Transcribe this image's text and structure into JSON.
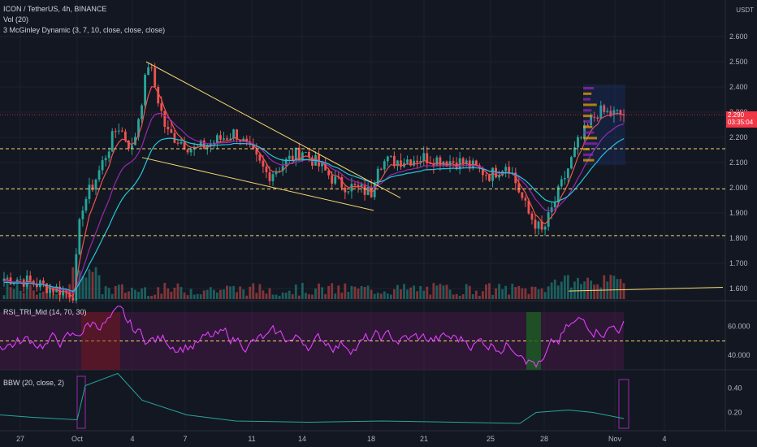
{
  "header": {
    "symbol_line": "ICON / TetherUS, 4h, BINANCE",
    "vol_line": "Vol (20)",
    "mcginley_line": "3 McGinley Dynamic (3, 7, 10, close, close, close)",
    "currency": "USDT"
  },
  "rsi_panel": {
    "label": "RSI_TRI_Mid (14, 70, 30)"
  },
  "bbw_panel": {
    "label": "BBW (20, close, 2)"
  },
  "last_price": {
    "value": "2.290",
    "countdown": "03:35:04",
    "color": "#f23645"
  },
  "colors": {
    "background": "#131722",
    "up": "#26a69a",
    "down": "#ef5350",
    "ma_fast": "#ef5350",
    "ma_mid": "#9c27b0",
    "ma_slow": "#26c6da",
    "trendline": "#f5d76e",
    "rsi_line": "#e040fb",
    "rsi_band": "#4a1848",
    "bbw_line": "#26a69a"
  },
  "chart_data": [
    {
      "type": "candlestick",
      "title": "ICON / TetherUS, 4h, BINANCE",
      "x_ticks": [
        "27",
        "Oct",
        "4",
        "7",
        "11",
        "14",
        "18",
        "21",
        "25",
        "28",
        "Nov",
        "4"
      ],
      "y_ticks": [
        "2.600",
        "2.500",
        "2.400",
        "2.300",
        "2.200",
        "2.100",
        "2.000",
        "1.900",
        "1.800",
        "1.700",
        "1.600"
      ],
      "ylim": [
        1.55,
        2.63
      ],
      "key_points": [
        {
          "date": "Sep 27",
          "close": 1.64
        },
        {
          "date": "Sep 30",
          "close": 1.58
        },
        {
          "date": "Oct 1",
          "close": 1.92
        },
        {
          "date": "Oct 2",
          "close": 2.05
        },
        {
          "date": "Oct 3",
          "close": 2.25
        },
        {
          "date": "Oct 4",
          "close": 2.15
        },
        {
          "date": "Oct 5",
          "close": 2.5
        },
        {
          "date": "Oct 6",
          "close": 2.22
        },
        {
          "date": "Oct 8",
          "close": 2.15
        },
        {
          "date": "Oct 10",
          "close": 2.22
        },
        {
          "date": "Oct 12",
          "close": 2.05
        },
        {
          "date": "Oct 14",
          "close": 2.15
        },
        {
          "date": "Oct 16",
          "close": 2.02
        },
        {
          "date": "Oct 18",
          "close": 1.98
        },
        {
          "date": "Oct 19",
          "close": 2.1
        },
        {
          "date": "Oct 21",
          "close": 2.12
        },
        {
          "date": "Oct 23",
          "close": 2.1
        },
        {
          "date": "Oct 25",
          "close": 2.05
        },
        {
          "date": "Oct 26",
          "close": 2.1
        },
        {
          "date": "Oct 27",
          "close": 1.9
        },
        {
          "date": "Oct 28",
          "close": 1.82
        },
        {
          "date": "Oct 29",
          "close": 2.0
        },
        {
          "date": "Oct 30",
          "close": 2.18
        },
        {
          "date": "Oct 31",
          "close": 2.3
        },
        {
          "date": "Nov 1",
          "close": 2.29
        }
      ],
      "horizontal_levels": [
        2.155,
        1.995,
        1.81
      ],
      "last_price": 2.29
    },
    {
      "type": "line",
      "title": "RSI_TRI_Mid (14, 70, 30)",
      "y_ticks": [
        "60.000",
        "40.000"
      ],
      "ylim": [
        30,
        75
      ],
      "midline": 50
    },
    {
      "type": "line",
      "title": "BBW (20, close, 2)",
      "y_ticks": [
        "0.40",
        "0.20"
      ],
      "ylim": [
        0.05,
        0.55
      ]
    }
  ]
}
